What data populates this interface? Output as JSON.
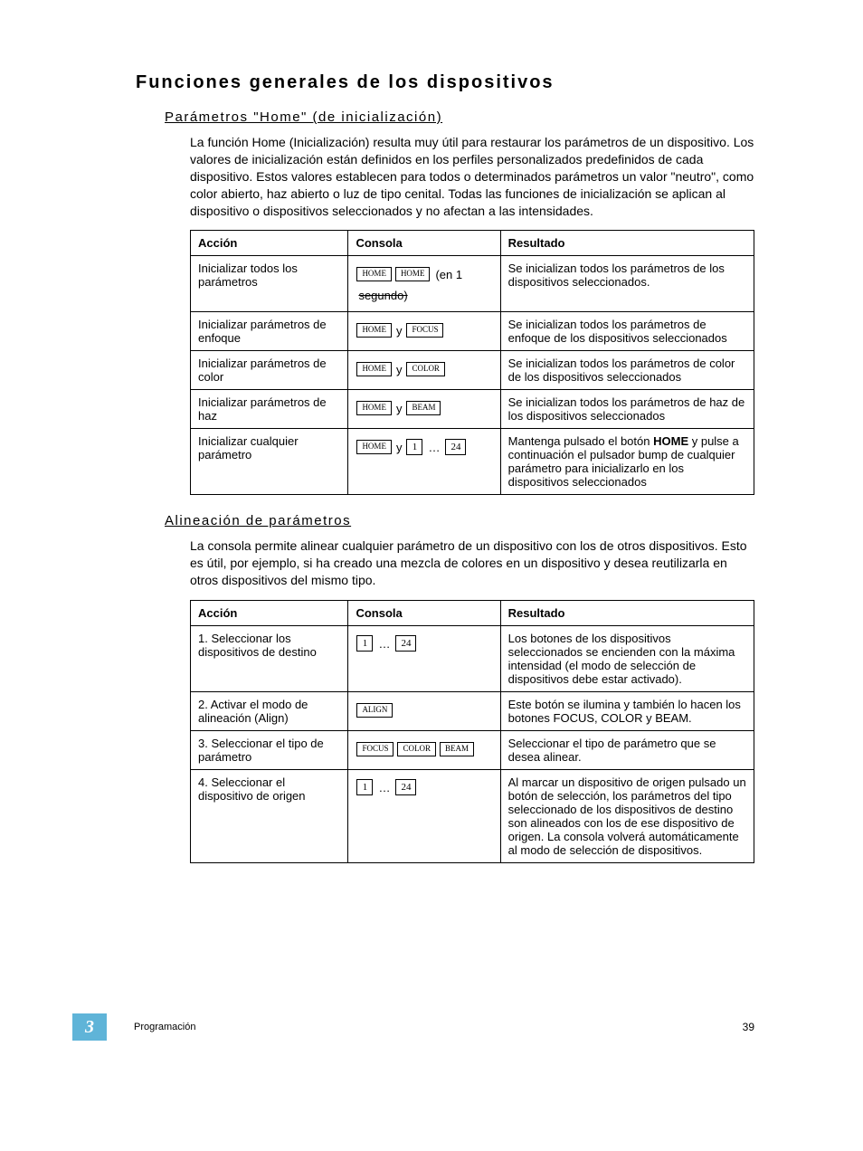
{
  "title": "Funciones generales de los dispositivos",
  "section1": {
    "heading": "Parámetros \"Home\" (de inicialización)",
    "body": "La función Home (Inicialización) resulta muy útil para restaurar los parámetros de un dispositivo. Los valores de inicialización están definidos en los perfiles personalizados predefinidos de cada dispositivo. Estos valores establecen para todos o determinados parámetros un valor \"neutro\", como color abierto, haz abierto o luz de tipo cenital. Todas las funciones de inicialización se aplican al dispositivo o dispositivos seleccionados y no afectan a las intensidades."
  },
  "table1": {
    "headers": {
      "c1": "Acción",
      "c2": "Consola",
      "c3": "Resultado"
    },
    "rows": [
      {
        "accion": "Inicializar todos los parámetros",
        "resultado": "Se inicializan todos los parámetros de los dispositivos seleccionados.",
        "keys": [
          "HOME",
          "HOME"
        ],
        "after": "(en 1",
        "after2": "segundo)"
      },
      {
        "accion": "Inicializar parámetros de enfoque",
        "resultado": "Se inicializan todos los parámetros de enfoque de los dispositivos seleccionados",
        "k1": "HOME",
        "k2": "FOCUS"
      },
      {
        "accion": "Inicializar parámetros de color",
        "resultado": "Se inicializan todos los parámetros de color de los dispositivos seleccionados",
        "k1": "HOME",
        "k2": "COLOR"
      },
      {
        "accion": "Inicializar parámetros de haz",
        "resultado": "Se inicializan todos los parámetros de haz de los dispositivos seleccionados",
        "k1": "HOME",
        "k2": "BEAM"
      },
      {
        "accion": "Inicializar cualquier parámetro",
        "resultado_pre": "Mantenga pulsado el botón ",
        "resultado_bold": "HOME",
        "resultado_post": " y pulse a continuación el pulsador bump de cualquier parámetro para inicializarlo en los dispositivos seleccionados",
        "k1": "HOME",
        "n1": "1",
        "n2": "24"
      }
    ]
  },
  "section2": {
    "heading": "Alineación de parámetros",
    "body": "La consola permite alinear cualquier parámetro de un dispositivo con los de otros dispositivos. Esto es útil, por ejemplo, si ha creado una mezcla de colores en un dispositivo y desea reutilizarla en otros dispositivos del mismo tipo."
  },
  "table2": {
    "headers": {
      "c1": "Acción",
      "c2": "Consola",
      "c3": "Resultado"
    },
    "rows": [
      {
        "accion": "1. Seleccionar los dispositivos de destino",
        "resultado": "Los botones de los dispositivos seleccionados se encienden con la máxima intensidad (el modo de selección de dispositivos debe estar activado).",
        "n1": "1",
        "n2": "24"
      },
      {
        "accion": "2. Activar el modo de alineación (Align)",
        "resultado": "Este botón se ilumina y también lo hacen los botones FOCUS, COLOR y BEAM.",
        "k1": "ALIGN"
      },
      {
        "accion": "3. Seleccionar el tipo de parámetro",
        "resultado": "Seleccionar el tipo de parámetro que se desea alinear.",
        "k1": "FOCUS",
        "k2": "COLOR",
        "k3": "BEAM"
      },
      {
        "accion": "4. Seleccionar el dispositivo de origen",
        "resultado": "Al marcar un dispositivo de origen pulsado un botón de selección, los parámetros del tipo seleccionado de los dispositivos de destino son alineados con los de ese dispositivo de origen. La consola volverá automáticamente al modo de selección de dispositivos.",
        "n1": "1",
        "n2": "24"
      }
    ]
  },
  "labels": {
    "y": "y",
    "dots": "…"
  },
  "footer": {
    "chapter": "3",
    "label": "Programación",
    "page": "39"
  }
}
